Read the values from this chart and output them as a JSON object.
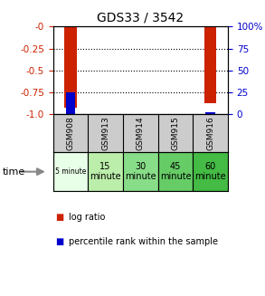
{
  "title": "GDS33 / 3542",
  "samples": [
    "GSM908",
    "GSM913",
    "GSM914",
    "GSM915",
    "GSM916"
  ],
  "time_labels": [
    "5 minute",
    "15\nminute",
    "30\nminute",
    "45\nminute",
    "60\nminute"
  ],
  "log_ratios": [
    -0.93,
    0.0,
    0.0,
    0.0,
    -0.88
  ],
  "percentile_ranks": [
    25.0,
    0.0,
    0.0,
    0.0,
    2.0
  ],
  "ylim_left": [
    -1.0,
    0.0
  ],
  "ylim_right": [
    0.0,
    100.0
  ],
  "yticks_left": [
    -1.0,
    -0.75,
    -0.5,
    -0.25,
    0.0
  ],
  "yticks_right": [
    0,
    25,
    50,
    75,
    100
  ],
  "left_tick_color": "#cc2200",
  "right_tick_color": "#0000cc",
  "bar_width": 0.35,
  "log_ratio_color": "#cc2200",
  "percentile_color": "#0000cc",
  "sample_bg_color": "#cccccc",
  "time_bg_colors": [
    "#e8ffe8",
    "#bbeeaa",
    "#88dd88",
    "#66cc66",
    "#44bb44"
  ]
}
